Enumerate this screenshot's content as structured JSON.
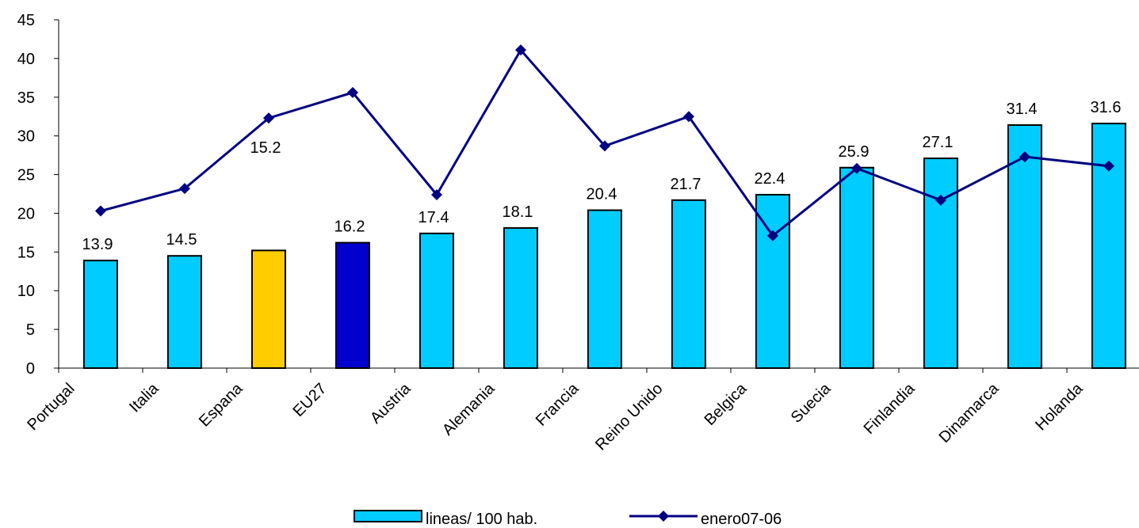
{
  "chart_data": {
    "type": "bar",
    "categories": [
      "Portugal",
      "Italia",
      "Espana",
      "EU27",
      "Austria",
      "Alemania",
      "Francia",
      "Reino Unido",
      "Belgica",
      "Suecia",
      "Finlandia",
      "Dinamarca",
      "Holanda"
    ],
    "series": [
      {
        "name": "lineas/ 100 hab.",
        "type": "bar",
        "values": [
          13.9,
          14.5,
          15.2,
          16.2,
          17.4,
          18.1,
          20.4,
          21.7,
          22.4,
          25.9,
          27.1,
          31.4,
          31.6
        ],
        "data_labels": [
          "13.9",
          "14.5",
          "15.2",
          "16.2",
          "17.4",
          "18.1",
          "20.4",
          "21.7",
          "22.4",
          "25.9",
          "27.1",
          "31.4",
          "31.6"
        ],
        "colors": [
          "#00CCFF",
          "#00CCFF",
          "#FFCC00",
          "#0000CC",
          "#00CCFF",
          "#00CCFF",
          "#00CCFF",
          "#00CCFF",
          "#00CCFF",
          "#00CCFF",
          "#00CCFF",
          "#00CCFF",
          "#00CCFF"
        ]
      },
      {
        "name": "enero07-06",
        "type": "line",
        "marker": "diamond",
        "color": "#000080",
        "values": [
          20.3,
          23.2,
          32.3,
          35.6,
          22.4,
          41.1,
          28.7,
          32.5,
          17.1,
          25.8,
          21.7,
          27.3,
          26.1
        ]
      }
    ],
    "y_ticks": [
      "0",
      "5",
      "10",
      "15",
      "20",
      "25",
      "30",
      "35",
      "40",
      "45"
    ],
    "ylim": [
      0,
      45
    ],
    "title": "",
    "xlabel": "",
    "ylabel": "",
    "grid": false,
    "legend_position": "bottom"
  }
}
